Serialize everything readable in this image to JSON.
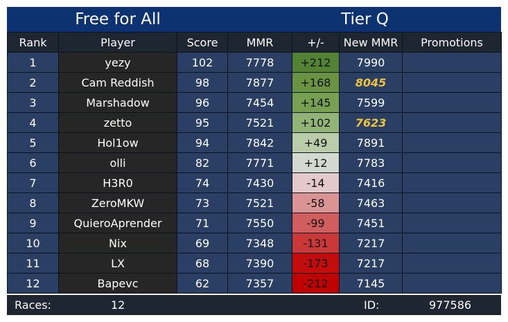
{
  "header": {
    "mode": "Free for All",
    "tier": "Tier Q"
  },
  "columns": [
    "Rank",
    "Player",
    "Score",
    "MMR",
    "+/-",
    "New MMR",
    "Promotions"
  ],
  "rows": [
    {
      "rank": "1",
      "player": "yezy",
      "score": "102",
      "mmr": "7778",
      "delta": "+212",
      "delta_color": "#548235",
      "new_mmr": "7990",
      "promoted": false,
      "promotion": ""
    },
    {
      "rank": "2",
      "player": "Cam Reddish",
      "score": "98",
      "mmr": "7877",
      "delta": "+168",
      "delta_color": "#6a9343",
      "new_mmr": "8045",
      "promoted": true,
      "promotion": ""
    },
    {
      "rank": "3",
      "player": "Marshadow",
      "score": "96",
      "mmr": "7454",
      "delta": "+145",
      "delta_color": "#77a052",
      "new_mmr": "7599",
      "promoted": false,
      "promotion": ""
    },
    {
      "rank": "4",
      "player": "zetto",
      "score": "95",
      "mmr": "7521",
      "delta": "+102",
      "delta_color": "#93b477",
      "new_mmr": "7623",
      "promoted": true,
      "promotion": ""
    },
    {
      "rank": "5",
      "player": "Hol1ow",
      "score": "94",
      "mmr": "7842",
      "delta": "+49",
      "delta_color": "#b9cdaa",
      "new_mmr": "7891",
      "promoted": false,
      "promotion": ""
    },
    {
      "rank": "6",
      "player": "olli",
      "score": "82",
      "mmr": "7771",
      "delta": "+12",
      "delta_color": "#d4d9d0",
      "new_mmr": "7783",
      "promoted": false,
      "promotion": ""
    },
    {
      "rank": "7",
      "player": "H3R0",
      "score": "74",
      "mmr": "7430",
      "delta": "-14",
      "delta_color": "#e3c9c9",
      "new_mmr": "7416",
      "promoted": false,
      "promotion": ""
    },
    {
      "rank": "8",
      "player": "ZeroMKW",
      "score": "73",
      "mmr": "7521",
      "delta": "-58",
      "delta_color": "#da9494",
      "new_mmr": "7463",
      "promoted": false,
      "promotion": ""
    },
    {
      "rank": "9",
      "player": "QuieroAprender",
      "score": "71",
      "mmr": "7550",
      "delta": "-99",
      "delta_color": "#d05e5e",
      "new_mmr": "7451",
      "promoted": false,
      "promotion": ""
    },
    {
      "rank": "10",
      "player": "Nix",
      "score": "69",
      "mmr": "7348",
      "delta": "-131",
      "delta_color": "#cb3838",
      "new_mmr": "7217",
      "promoted": false,
      "promotion": ""
    },
    {
      "rank": "11",
      "player": "LX",
      "score": "68",
      "mmr": "7390",
      "delta": "-173",
      "delta_color": "#c30d0d",
      "new_mmr": "7217",
      "promoted": false,
      "promotion": ""
    },
    {
      "rank": "12",
      "player": "Bapevc",
      "score": "62",
      "mmr": "7357",
      "delta": "-212",
      "delta_color": "#c00000",
      "new_mmr": "7145",
      "promoted": false,
      "promotion": ""
    }
  ],
  "footer": {
    "races_label": "Races:",
    "races_value": "12",
    "id_label": "ID:",
    "id_value": "977586"
  },
  "colors": {
    "header_bg": "#0d3272",
    "column_header_bg": "#1e2632",
    "blue_cell": "#2a3f63",
    "dark_cell": "#262626",
    "promotion_text": "#f0c33c"
  }
}
